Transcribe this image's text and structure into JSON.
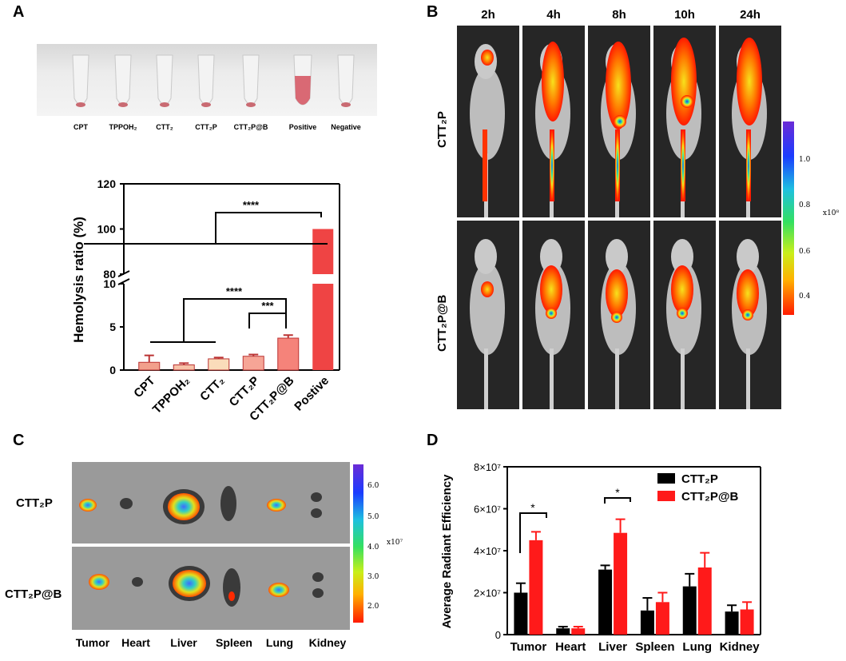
{
  "panels": {
    "a": "A",
    "b": "B",
    "c": "C",
    "d": "D"
  },
  "tube_photo": {
    "labels": [
      "CPT",
      "TPPOH₂",
      "CTT₂",
      "CTT₂P",
      "CTT₂P@B",
      "Positive",
      "Negative"
    ]
  },
  "hemolysis_chart": {
    "ylabel": "Hemolysis ratio (%)",
    "sig_upper": "****",
    "sig_mid": "****",
    "sig_low": "***"
  },
  "invivo": {
    "timepoints": [
      "2h",
      "4h",
      "8h",
      "10h",
      "24h"
    ],
    "row_labels": [
      "CTT₂P",
      "CTT₂P@B"
    ],
    "scale_ticks": [
      "1.0",
      "0.8",
      "0.6",
      "0.4"
    ],
    "scale_unit": "x10⁸"
  },
  "exvivo": {
    "row_labels": [
      "CTT₂P",
      "CTT₂P@B"
    ],
    "organs": [
      "Tumor",
      "Heart",
      "Liver",
      "Spleen",
      "Lung",
      "Kidney"
    ],
    "scale_ticks": [
      "6.0",
      "5.0",
      "4.0",
      "3.0",
      "2.0"
    ],
    "scale_unit": "x10⁷"
  },
  "chart_data": [
    {
      "type": "bar",
      "title": "",
      "xlabel": "",
      "ylabel": "Hemolysis ratio (%)",
      "categories": [
        "CPT",
        "TPPOH₂",
        "CTT₂",
        "CTT₂P",
        "CTT₂P@B",
        "Postive"
      ],
      "values": [
        0.9,
        0.6,
        1.3,
        1.6,
        3.7,
        100
      ],
      "errors": [
        0.8,
        0.2,
        0.15,
        0.2,
        0.35,
        0
      ],
      "colors": [
        "#f2a08c",
        "#f7c2a8",
        "#fadcba",
        "#f6a596",
        "#f5837a",
        "#ef4444"
      ],
      "axis_break": [
        10,
        80
      ],
      "ylim_lower": [
        0,
        10
      ],
      "ylim_upper": [
        80,
        120
      ],
      "yticks_lower": [
        0,
        5,
        10
      ],
      "yticks_upper": [
        80,
        100,
        120
      ],
      "significance": [
        "****",
        "****",
        "***"
      ]
    },
    {
      "type": "bar",
      "title": "",
      "xlabel": "",
      "ylabel": "Average Radiant Efficiency",
      "categories": [
        "Tumor",
        "Heart",
        "Liver",
        "Spleen",
        "Lung",
        "Kidney"
      ],
      "series": [
        {
          "name": "CTT₂P",
          "color": "#000000",
          "values": [
            20000000.0,
            3000000.0,
            31000000.0,
            11500000.0,
            23000000.0,
            11000000.0
          ],
          "errors": [
            4500000.0,
            800000.0,
            2000000.0,
            6000000.0,
            6000000.0,
            3000000.0
          ]
        },
        {
          "name": "CTT₂P@B",
          "color": "#ff1a1a",
          "values": [
            45000000.0,
            3000000.0,
            48500000.0,
            15500000.0,
            32000000.0,
            12000000.0
          ],
          "errors": [
            4000000.0,
            800000.0,
            6500000.0,
            4500000.0,
            7000000.0,
            3500000.0
          ]
        }
      ],
      "ylim": [
        0,
        80000000.0
      ],
      "yticks": [
        "0",
        "2×10⁷",
        "4×10⁷",
        "6×10⁷",
        "8×10⁷"
      ],
      "significance": [
        "*",
        "*"
      ],
      "legend": "top-right"
    }
  ]
}
